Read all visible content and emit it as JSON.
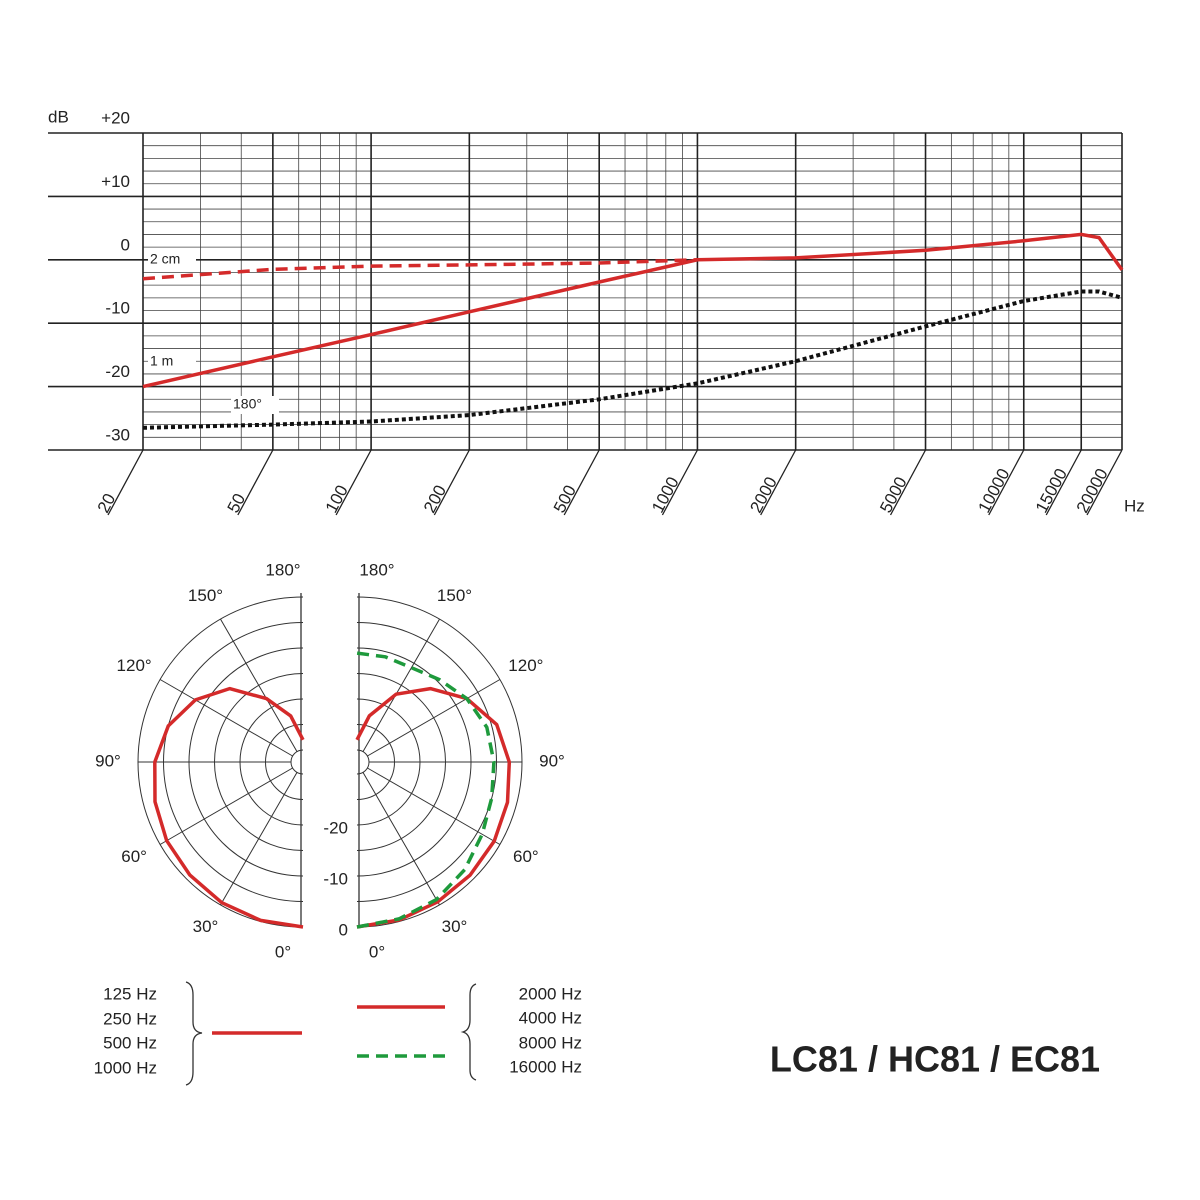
{
  "product_name": "LC81 / HC81 / EC81",
  "chart_data": [
    {
      "type": "line",
      "xscale": "log",
      "ylabel": "dB",
      "xlabel": "Hz",
      "xlim": [
        20,
        20000
      ],
      "ylim": [
        -30,
        20
      ],
      "xticks": [
        20,
        50,
        100,
        200,
        500,
        1000,
        2000,
        5000,
        10000,
        15000,
        20000
      ],
      "xminorticks": [
        30,
        40,
        60,
        70,
        80,
        90,
        300,
        400,
        600,
        700,
        800,
        900,
        3000,
        4000,
        6000,
        7000,
        8000,
        9000
      ],
      "yticks": [
        {
          "value": 20,
          "label": "+20"
        },
        {
          "value": 10,
          "label": "+10"
        },
        0,
        -10,
        -20,
        -30
      ],
      "yminorticks": [
        -28,
        -26,
        -24,
        -22,
        -18,
        -16,
        -14,
        -12,
        -8,
        -6,
        -4,
        -2,
        2,
        4,
        6,
        8,
        12,
        14,
        16,
        18
      ],
      "x": [
        20,
        50,
        100,
        200,
        500,
        1000,
        2000,
        5000,
        10000,
        15000,
        17000,
        20000
      ],
      "series": [
        {
          "name": "2 cm",
          "color": "#d42a2a",
          "line_style": "dashed",
          "values": [
            -3,
            -1.5,
            -1,
            -0.8,
            -0.5,
            0,
            null,
            null,
            null,
            null,
            null,
            null
          ]
        },
        {
          "name": "1 m",
          "color": "#d42a2a",
          "line_style": "solid",
          "values": [
            -20,
            -15.3,
            -11.8,
            -8.2,
            -3.5,
            0,
            0.3,
            1.5,
            3,
            4,
            3.5,
            -1.6
          ]
        },
        {
          "name": "180°",
          "color": "#111111",
          "line_style": "dotted",
          "values": [
            -26.5,
            -26,
            -25.5,
            -24.5,
            -22,
            -19.5,
            -16,
            -10.5,
            -6.5,
            -5,
            -5,
            -6
          ]
        }
      ]
    },
    {
      "type": "polar",
      "rlim": [
        -30,
        0
      ],
      "rticks": [
        0,
        -10,
        -20
      ],
      "rminorticks": [
        -5,
        -15,
        -25
      ],
      "theta": [
        0,
        15,
        30,
        45,
        60,
        75,
        90,
        105,
        120,
        135,
        150,
        165,
        180
      ],
      "thetaticks": [
        {
          "value": 0,
          "label": "0°"
        },
        {
          "value": 30,
          "label": "30°"
        },
        {
          "value": 60,
          "label": "60°"
        },
        {
          "value": 90,
          "label": "90°"
        },
        {
          "value": 120,
          "label": "120°"
        },
        {
          "value": 150,
          "label": "150°"
        },
        {
          "value": 180,
          "label": "180°"
        }
      ],
      "panels": [
        {
          "side": "left",
          "series": [
            {
              "labels": [
                "125 Hz",
                "250 Hz",
                "500 Hz",
                "1000 Hz"
              ],
              "color": "#d42a2a",
              "line_style": "solid",
              "values": [
                0,
                -0.2,
                -0.5,
                -1,
                -1.5,
                -2.3,
                -3.3,
                -5,
                -8,
                -12,
                -18,
                -23,
                -28
              ]
            }
          ]
        },
        {
          "side": "right",
          "series": [
            {
              "labels": [
                "2000 Hz",
                "4000 Hz"
              ],
              "color": "#d42a2a",
              "line_style": "solid",
              "values": [
                0,
                -0.3,
                -0.7,
                -1,
                -1.3,
                -1.8,
                -2.5,
                -4,
                -7.5,
                -12,
                -17,
                -23,
                -28
              ]
            },
            {
              "labels": [
                "8000 Hz",
                "16000 Hz"
              ],
              "color": "#1e9a3c",
              "line_style": "dashed",
              "values": [
                0,
                -0.5,
                -1.2,
                -2.5,
                -4,
                -5,
                -5.5,
                -6,
                -7.5,
                -9.5,
                -11,
                -11,
                -11
              ]
            }
          ]
        }
      ]
    }
  ]
}
